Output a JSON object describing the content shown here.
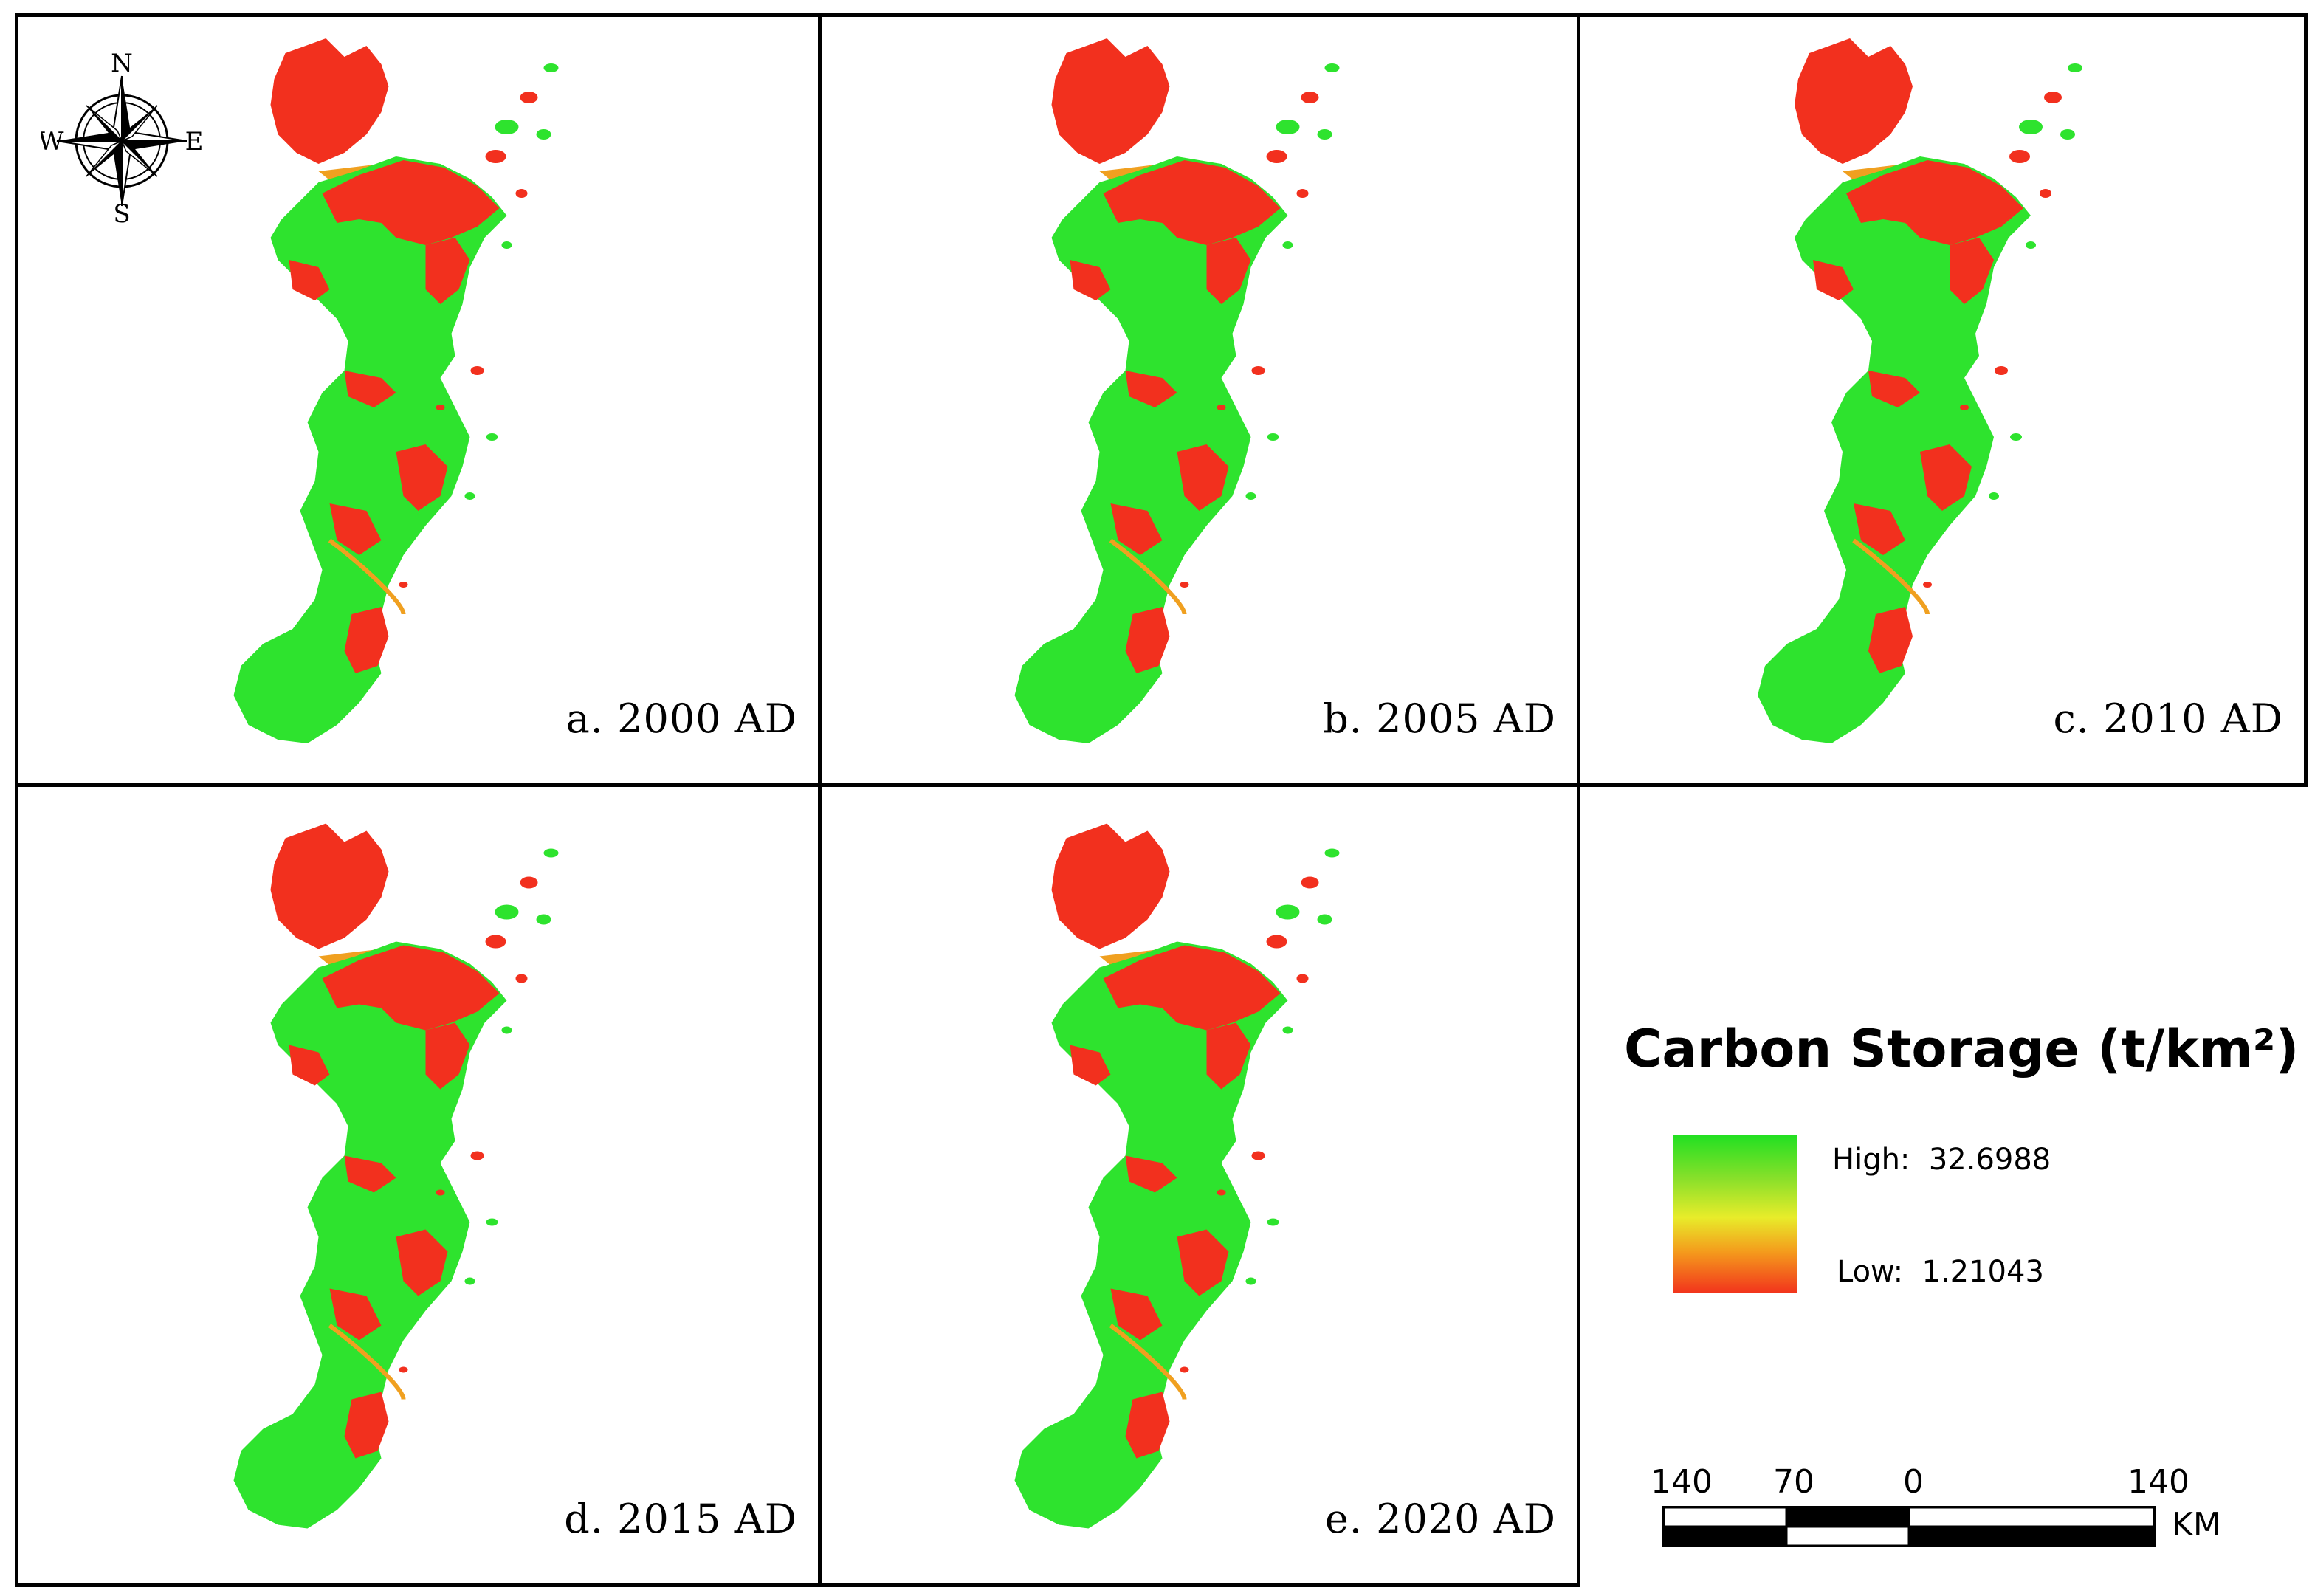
{
  "panels": [
    {
      "caption": "a. 2000 AD",
      "has_compass": true
    },
    {
      "caption": "b. 2005 AD",
      "has_compass": false
    },
    {
      "caption": "c. 2010 AD",
      "has_compass": false
    },
    {
      "caption": "d. 2015 AD",
      "has_compass": false
    },
    {
      "caption": "e. 2020 AD",
      "has_compass": false
    }
  ],
  "compass": {
    "n": "N",
    "s": "S",
    "e": "E",
    "w": "W"
  },
  "legend": {
    "title": "Carbon Storage (t/km²)",
    "high_label": "High:  32.6988",
    "low_label": "Low:  1.21043",
    "colors": {
      "high": "#22e022",
      "mid": "#e8ec2a",
      "low": "#f2331c"
    }
  },
  "scale_bar": {
    "labels": [
      "140",
      "70",
      "0",
      "140"
    ],
    "unit": "KM"
  },
  "colors": {
    "high_storage": "#2ee32e",
    "low_storage": "#f2301e",
    "transition": "#f0a020"
  }
}
